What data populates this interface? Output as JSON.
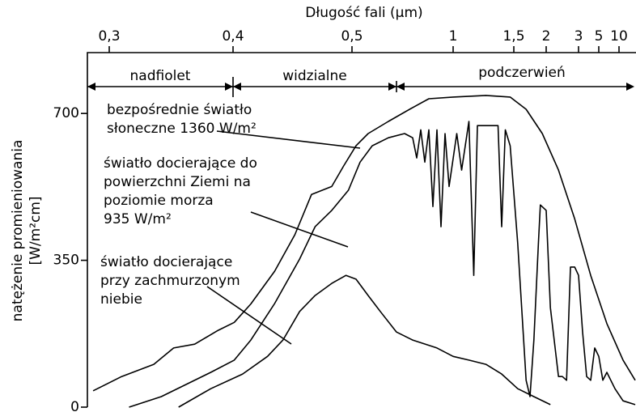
{
  "chart_data": {
    "type": "line",
    "title": "Długość fali (µm)",
    "y_label": [
      "natężenie promieniowania",
      "[W/m²cm]"
    ],
    "regions": [
      "nadfiolet",
      "widzialne",
      "podczerwień"
    ],
    "annotations": [
      [
        "bezpośrednie światło",
        "słoneczne 1360 W/m²"
      ],
      [
        "światło docierające do",
        "powierzchni Ziemi na",
        "poziomie morza",
        "935 W/m²"
      ],
      [
        "światło docierające",
        "przy zachmurzonym",
        "niebie"
      ]
    ],
    "xlim": [
      0.28,
      14
    ],
    "xticks": [
      {
        "value": 0.3,
        "label": "0,3"
      },
      {
        "value": 0.4,
        "label": "0,4"
      },
      {
        "value": 0.5,
        "label": "0,5"
      },
      1,
      {
        "value": 1.5,
        "label": "1,5"
      },
      2,
      3,
      5,
      10
    ],
    "ylim": [
      0,
      845
    ],
    "yticks": [
      0,
      350,
      700
    ],
    "grid": false,
    "series": [
      {
        "color": "#000000",
        "x": [
          0.287,
          0.31,
          0.336,
          0.352,
          0.369,
          0.388,
          0.401,
          0.415,
          0.435,
          0.452,
          0.466,
          0.483,
          0.493,
          0.52,
          0.58,
          0.68,
          0.8,
          0.88,
          1.0,
          1.27,
          1.47,
          1.69,
          1.94,
          2.38,
          2.88,
          4.2,
          7,
          11,
          14
        ],
        "values": [
          39,
          73,
          102,
          141,
          150,
          183,
          202,
          246,
          324,
          411,
          507,
          526,
          575,
          623,
          652,
          681,
          714,
          735,
          739,
          743,
          739,
          710,
          652,
          565,
          449,
          314,
          199,
          112,
          64
        ]
      },
      {
        "color": "#000000",
        "x": [
          0.316,
          0.342,
          0.362,
          0.382,
          0.401,
          0.415,
          0.435,
          0.456,
          0.469,
          0.483,
          0.497,
          0.54,
          0.6,
          0.68,
          0.76,
          0.8,
          0.82,
          0.84,
          0.86,
          0.88,
          0.9,
          0.92,
          0.94,
          0.96,
          0.98,
          1.03,
          1.07,
          1.13,
          1.17,
          1.2,
          1.3,
          1.37,
          1.4,
          1.43,
          1.47,
          1.56,
          1.69,
          1.75,
          1.81,
          1.88,
          1.91,
          2.0,
          2.13,
          2.38,
          2.5,
          2.63,
          2.75,
          2.88,
          3.0,
          3.4,
          3.8,
          4.2,
          4.6,
          5.0,
          6,
          7,
          9,
          11,
          14
        ],
        "values": [
          0,
          25,
          54,
          83,
          112,
          160,
          247,
          353,
          430,
          469,
          517,
          584,
          623,
          642,
          652,
          642,
          594,
          661,
          584,
          661,
          478,
          661,
          430,
          652,
          526,
          652,
          565,
          681,
          314,
          671,
          671,
          671,
          430,
          661,
          623,
          391,
          64,
          25,
          160,
          391,
          482,
          469,
          237,
          73,
          73,
          64,
          334,
          334,
          314,
          179,
          73,
          64,
          141,
          121,
          64,
          83,
          44,
          15,
          6
        ]
      },
      {
        "color": "#000000",
        "x": [
          0.356,
          0.382,
          0.408,
          0.429,
          0.442,
          0.456,
          0.469,
          0.483,
          0.495,
          0.52,
          0.58,
          0.64,
          0.72,
          0.8,
          0.92,
          1.0,
          1.13,
          1.27,
          1.4,
          1.56,
          1.81,
          2.13
        ],
        "values": [
          0,
          44,
          79,
          121,
          160,
          228,
          266,
          295,
          314,
          305,
          266,
          228,
          179,
          160,
          141,
          121,
          112,
          102,
          79,
          44,
          25,
          6
        ]
      }
    ]
  }
}
